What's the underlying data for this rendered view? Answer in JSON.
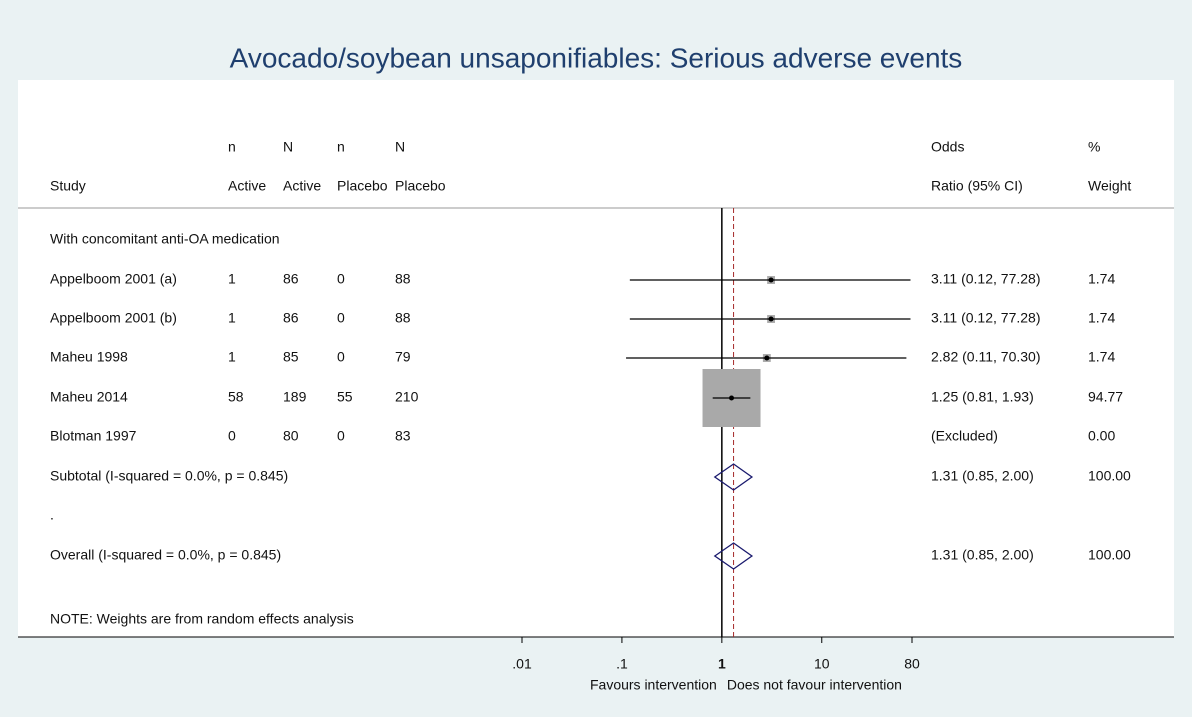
{
  "chart_data": {
    "type": "forest",
    "title": "Avocado/soybean unsaponifiables: Serious adverse events",
    "columns": [
      [
        "Study"
      ],
      [
        "n",
        "Active"
      ],
      [
        "N",
        "Active"
      ],
      [
        "n",
        "Placebo"
      ],
      [
        "N",
        "Placebo"
      ],
      [
        "Odds",
        "Ratio (95% CI)"
      ],
      [
        "%",
        "Weight"
      ]
    ],
    "group_label": "With concomitant anti-OA medication",
    "studies": [
      {
        "study": "Appelboom 2001 (a)",
        "n_active": 1,
        "N_active": 86,
        "n_placebo": 0,
        "N_placebo": 88,
        "or": 3.11,
        "lo": 0.12,
        "hi": 77.28,
        "or_label": "3.11 (0.12, 77.28)",
        "weight": 1.74
      },
      {
        "study": "Appelboom 2001 (b)",
        "n_active": 1,
        "N_active": 86,
        "n_placebo": 0,
        "N_placebo": 88,
        "or": 3.11,
        "lo": 0.12,
        "hi": 77.28,
        "or_label": "3.11 (0.12, 77.28)",
        "weight": 1.74
      },
      {
        "study": "Maheu 1998",
        "n_active": 1,
        "N_active": 85,
        "n_placebo": 0,
        "N_placebo": 79,
        "or": 2.82,
        "lo": 0.11,
        "hi": 70.3,
        "or_label": "2.82 (0.11, 70.30)",
        "weight": 1.74
      },
      {
        "study": "Maheu 2014",
        "n_active": 58,
        "N_active": 189,
        "n_placebo": 55,
        "N_placebo": 210,
        "or": 1.25,
        "lo": 0.81,
        "hi": 1.93,
        "or_label": "1.25 (0.81, 1.93)",
        "weight": 94.77
      },
      {
        "study": "Blotman 1997",
        "n_active": 0,
        "N_active": 80,
        "n_placebo": 0,
        "N_placebo": 83,
        "or": null,
        "lo": null,
        "hi": null,
        "or_label": "(Excluded)",
        "weight": 0,
        "weight_label": "0.00"
      }
    ],
    "subtotal": {
      "label": "Subtotal  (I-squared = 0.0%, p = 0.845)",
      "or": 1.31,
      "lo": 0.85,
      "hi": 2.0,
      "or_label": "1.31 (0.85, 2.00)",
      "weight": 100,
      "weight_label": "100.00"
    },
    "separator": ".",
    "overall": {
      "label": "Overall  (I-squared = 0.0%, p = 0.845)",
      "or": 1.31,
      "lo": 0.85,
      "hi": 2.0,
      "or_label": "1.31 (0.85, 2.00)",
      "weight": 100,
      "weight_label": "100.00"
    },
    "note": "NOTE: Weights are from random effects analysis",
    "xscale": "log",
    "xlim": [
      0.01,
      80
    ],
    "xticks": [
      {
        "value": 0.01,
        "label": ".01"
      },
      {
        "value": 0.1,
        "label": ".1"
      },
      1,
      10,
      80
    ],
    "ref_line": 1,
    "xlabel_left": "Favours intervention",
    "xlabel_right": "Does not favour intervention",
    "box_color": "#a9a9a9",
    "diamond_color": "#1a1a6e",
    "dash_color": "#a52a2a"
  }
}
